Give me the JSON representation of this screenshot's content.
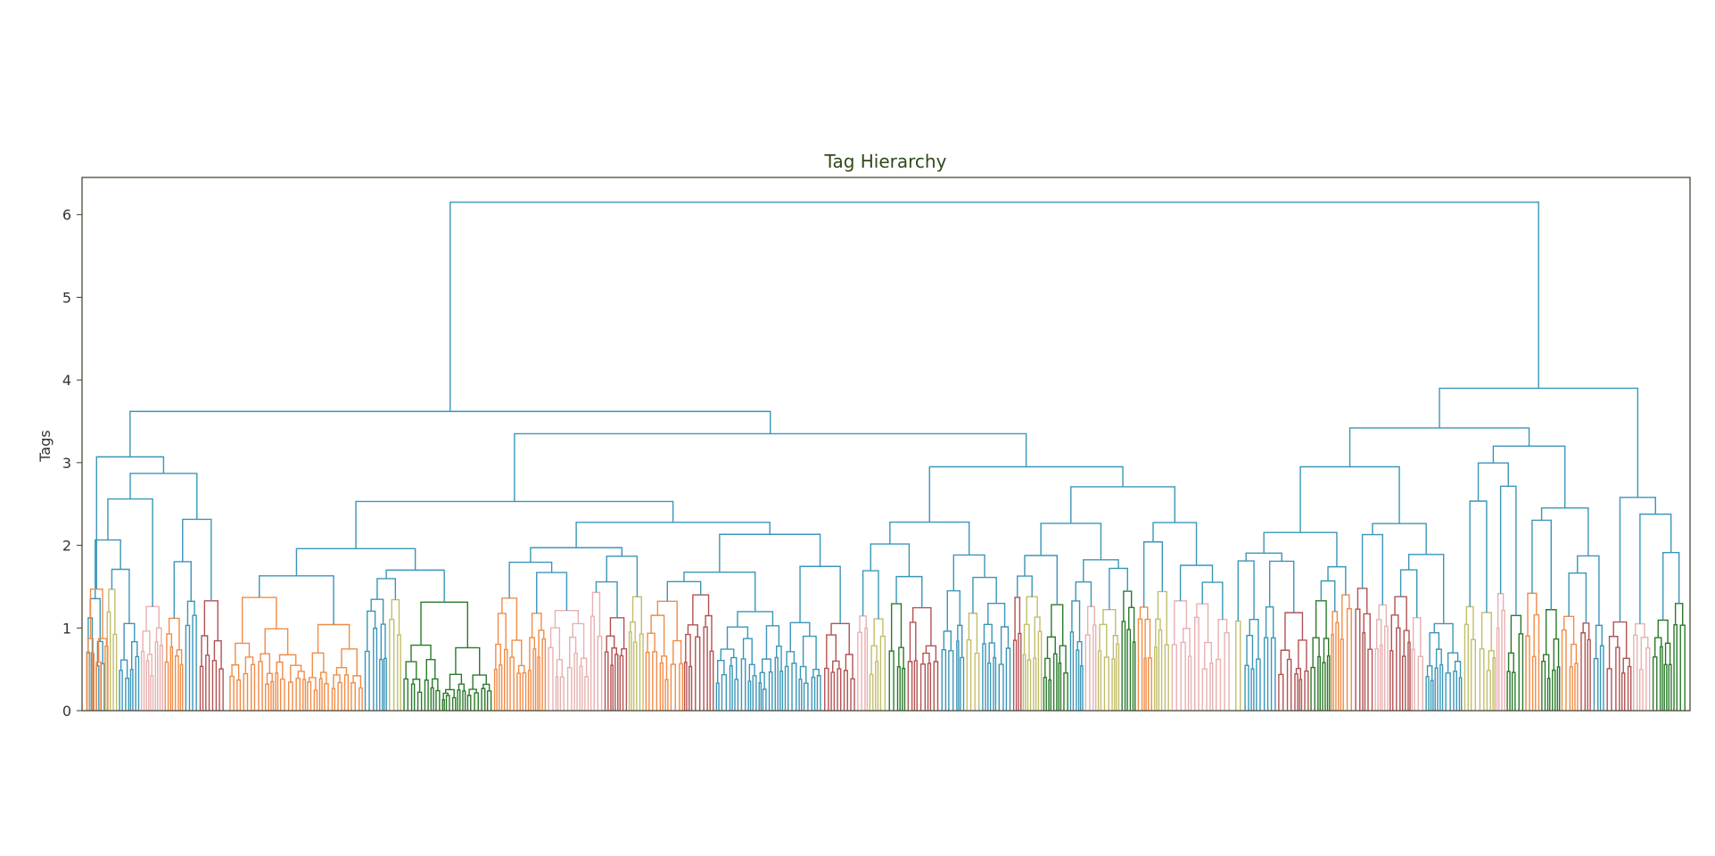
{
  "chart_data": {
    "type": "dendrogram",
    "title": "Tag Hierarchy",
    "ylabel": "Tags",
    "ylim": [
      0,
      6.45
    ],
    "yticks": [
      "0",
      "1",
      "2",
      "3",
      "4",
      "5",
      "6"
    ],
    "grid": false,
    "legend": "none",
    "root_height": 6.15,
    "top_clusters": [
      {
        "name": "left",
        "height": 3.62,
        "children": [
          {
            "height": 3.07,
            "children": [
              {
                "height": 1.47
              },
              {
                "height": 2.87
              }
            ]
          },
          {
            "height": 3.35,
            "children": [
              {
                "height": 2.53
              },
              {
                "height": 2.95
              }
            ]
          }
        ]
      },
      {
        "name": "right",
        "height": 3.9,
        "children": [
          {
            "height": 3.42,
            "children": [
              {
                "height": 2.95
              },
              {
                "height": 3.2
              }
            ]
          },
          {
            "height": 2.58
          }
        ]
      }
    ],
    "leaf_heights_range": [
      0.7,
      1.5
    ],
    "leaf_count": 720,
    "colors": {
      "link": "#3a96b8",
      "clusters": [
        "#f08c47",
        "#b25252",
        "#e8b0b0",
        "#c2be6a",
        "#3a96b8",
        "#2a7a2a"
      ]
    }
  }
}
